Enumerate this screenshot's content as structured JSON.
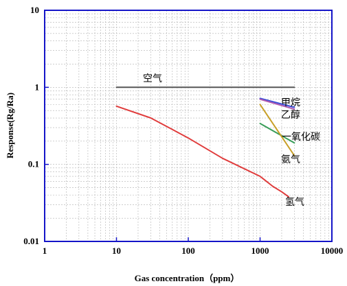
{
  "chart_data": {
    "type": "line",
    "xlabel": "Gas concentration（ppm）",
    "ylabel": "Response(Rg/Ra)",
    "x_scale": "log",
    "y_scale": "log",
    "xlim": [
      1,
      10000
    ],
    "ylim": [
      0.01,
      10
    ],
    "x_ticks": [
      "1",
      "10",
      "100",
      "1000",
      "10000"
    ],
    "y_ticks": [
      "0.01",
      "0.1",
      "1",
      "10"
    ],
    "grid": true,
    "series": [
      {
        "name": "空气",
        "color": "#555555",
        "x": [
          10,
          3000
        ],
        "y": [
          1.0,
          1.0
        ]
      },
      {
        "name": "甲烷",
        "color": "#3a4fd8",
        "x": [
          1000,
          3000
        ],
        "y": [
          0.72,
          0.55
        ]
      },
      {
        "name": "乙醇",
        "color": "#b05ab0",
        "x": [
          1000,
          3000
        ],
        "y": [
          0.7,
          0.52
        ]
      },
      {
        "name": "一氧化碳",
        "color": "#3a9e5a",
        "x": [
          1000,
          3000
        ],
        "y": [
          0.34,
          0.19
        ]
      },
      {
        "name": "氨气",
        "color": "#c8a028",
        "x": [
          1000,
          3000
        ],
        "y": [
          0.6,
          0.13
        ]
      },
      {
        "name": "氢气",
        "color": "#e03c3c",
        "x": [
          10,
          30,
          100,
          300,
          1000,
          1500,
          2000,
          2500
        ],
        "y": [
          0.57,
          0.4,
          0.22,
          0.12,
          0.07,
          0.052,
          0.044,
          0.038
        ]
      }
    ]
  }
}
